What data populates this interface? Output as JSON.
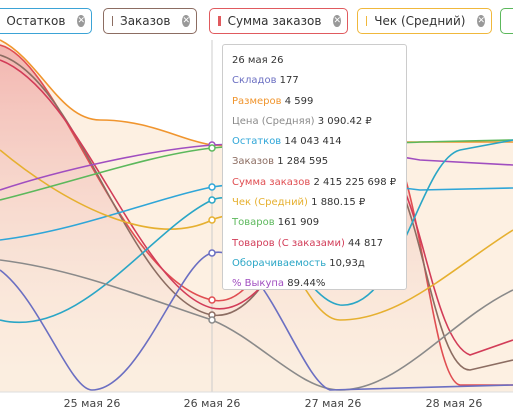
{
  "legend": [
    {
      "name": "Остатков",
      "color": "#3ba3d6"
    },
    {
      "name": "Заказов",
      "color": "#8c6d62"
    },
    {
      "name": "Сумма заказов",
      "color": "#e05a5e"
    },
    {
      "name": "Чек (Средний)",
      "color": "#f0b83c"
    }
  ],
  "x_labels": [
    "25 мая 26",
    "26 мая 26",
    "27 мая 26",
    "28 мая 26"
  ],
  "tooltip": {
    "title": "26 мая 26",
    "rows": [
      {
        "label": "Складов",
        "value": "177",
        "color": "#6b6fc2"
      },
      {
        "label": "Размеров",
        "value": "4 599",
        "color": "#f0952e"
      },
      {
        "label": "Цена (Средняя)",
        "value": "3 090.42 ₽",
        "color": "#8a8a8a"
      },
      {
        "label": "Остатков",
        "value": "14 043 414",
        "color": "#2fa6d8"
      },
      {
        "label": "Заказов",
        "value": "1 284 595",
        "color": "#8c6d62"
      },
      {
        "label": "Сумма заказов",
        "value": "2 415 225 698 ₽",
        "color": "#e04e52"
      },
      {
        "label": "Чек (Средний)",
        "value": "1 880.15 ₽",
        "color": "#e6b030"
      },
      {
        "label": "Товаров",
        "value": "161 909",
        "color": "#5cb85c"
      },
      {
        "label": "Товаров (С заказами)",
        "value": "44 817",
        "color": "#d23c58"
      },
      {
        "label": "Оборачиваемость",
        "value": "10,93д",
        "color": "#2aa6c6"
      },
      {
        "label": "% Выкупа",
        "value": "89.44%",
        "color": "#a04ec0"
      }
    ]
  }
}
